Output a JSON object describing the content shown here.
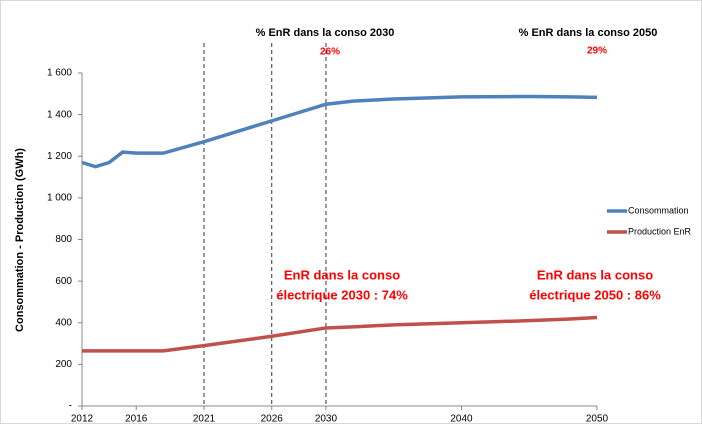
{
  "chart_data": {
    "type": "line",
    "ylabel": "Consommation - Production (GWh)",
    "x": [
      2012,
      2013,
      2014,
      2015,
      2016,
      2018,
      2021,
      2026,
      2030,
      2032,
      2035,
      2040,
      2045,
      2048,
      2050
    ],
    "series": [
      {
        "name": "Consommation",
        "color": "#4f81bd",
        "values": [
          1170,
          1150,
          1170,
          1220,
          1215,
          1215,
          1270,
          1370,
          1450,
          1465,
          1475,
          1485,
          1487,
          1485,
          1483
        ]
      },
      {
        "name": "Production EnR",
        "color": "#c0504d",
        "values": [
          265,
          265,
          265,
          265,
          265,
          265,
          290,
          335,
          375,
          380,
          390,
          400,
          410,
          418,
          425
        ]
      }
    ],
    "xlim": [
      2012,
      2050
    ],
    "xticks": [
      2012,
      2016,
      2021,
      2026,
      2030,
      2040,
      2050
    ],
    "ylim": [
      0,
      1600
    ],
    "yticks": [
      {
        "value": 0,
        "label": "-"
      },
      200,
      400,
      600,
      800,
      {
        "value": 1000,
        "label": "1 000"
      },
      {
        "value": 1200,
        "label": "1 200"
      },
      {
        "value": 1400,
        "label": "1 400"
      },
      {
        "value": 1600,
        "label": "1 600"
      }
    ],
    "vlines": [
      2021,
      2026,
      2030
    ],
    "annotations": [
      {
        "title": "% EnR dans la conso 2030",
        "value": "26%"
      },
      {
        "title": "% EnR dans la conso 2050",
        "value": "29%"
      },
      {
        "line1": "EnR dans la conso",
        "line2": "électrique 2030 : 74%"
      },
      {
        "line1": "EnR dans la conso",
        "line2": "électrique 2050 : 86%"
      }
    ],
    "legend": "right"
  }
}
